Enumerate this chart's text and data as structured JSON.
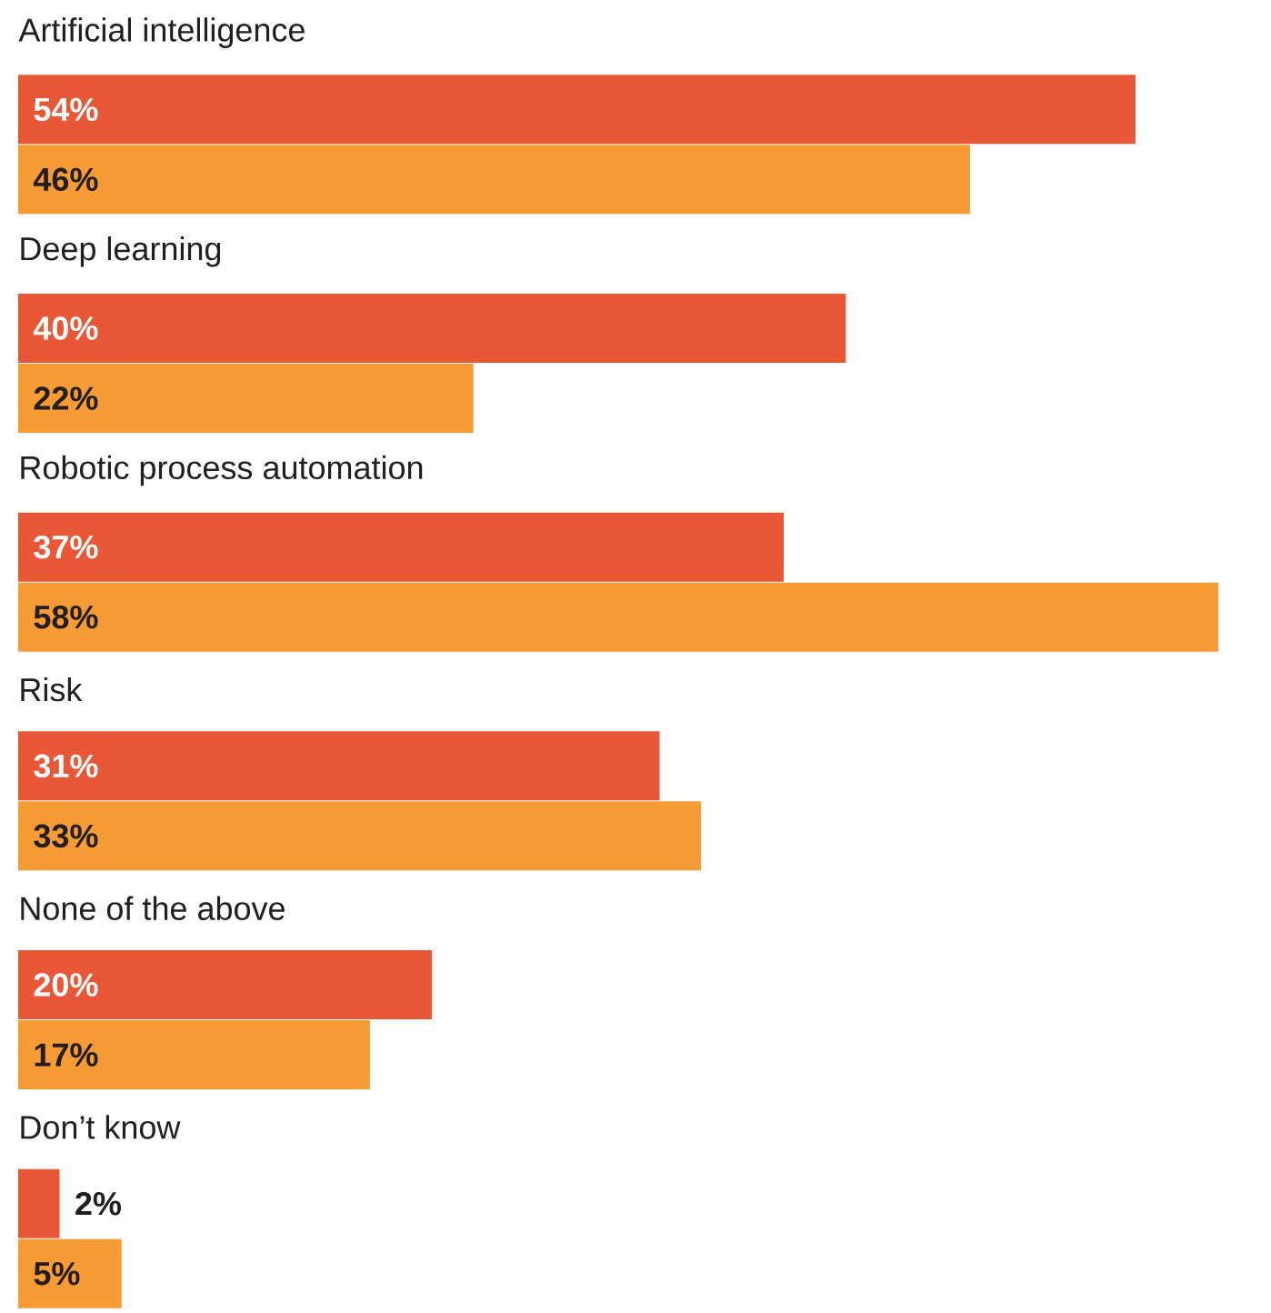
{
  "chart_data": {
    "type": "bar",
    "orientation": "horizontal",
    "categories": [
      "Artificial intelligence",
      "Deep learning",
      "Robotic process automation",
      "Risk",
      "None of the above",
      "Don’t know"
    ],
    "series": [
      {
        "color": "#e85836",
        "values": [
          54,
          40,
          37,
          31,
          20,
          2
        ],
        "value_labels": [
          "54%",
          "40%",
          "37%",
          "31%",
          "20%",
          "2%"
        ]
      },
      {
        "color": "#f79b34",
        "values": [
          46,
          22,
          58,
          33,
          17,
          5
        ],
        "value_labels": [
          "46%",
          "22%",
          "58%",
          "33%",
          "17%",
          "5%"
        ]
      }
    ]
  }
}
